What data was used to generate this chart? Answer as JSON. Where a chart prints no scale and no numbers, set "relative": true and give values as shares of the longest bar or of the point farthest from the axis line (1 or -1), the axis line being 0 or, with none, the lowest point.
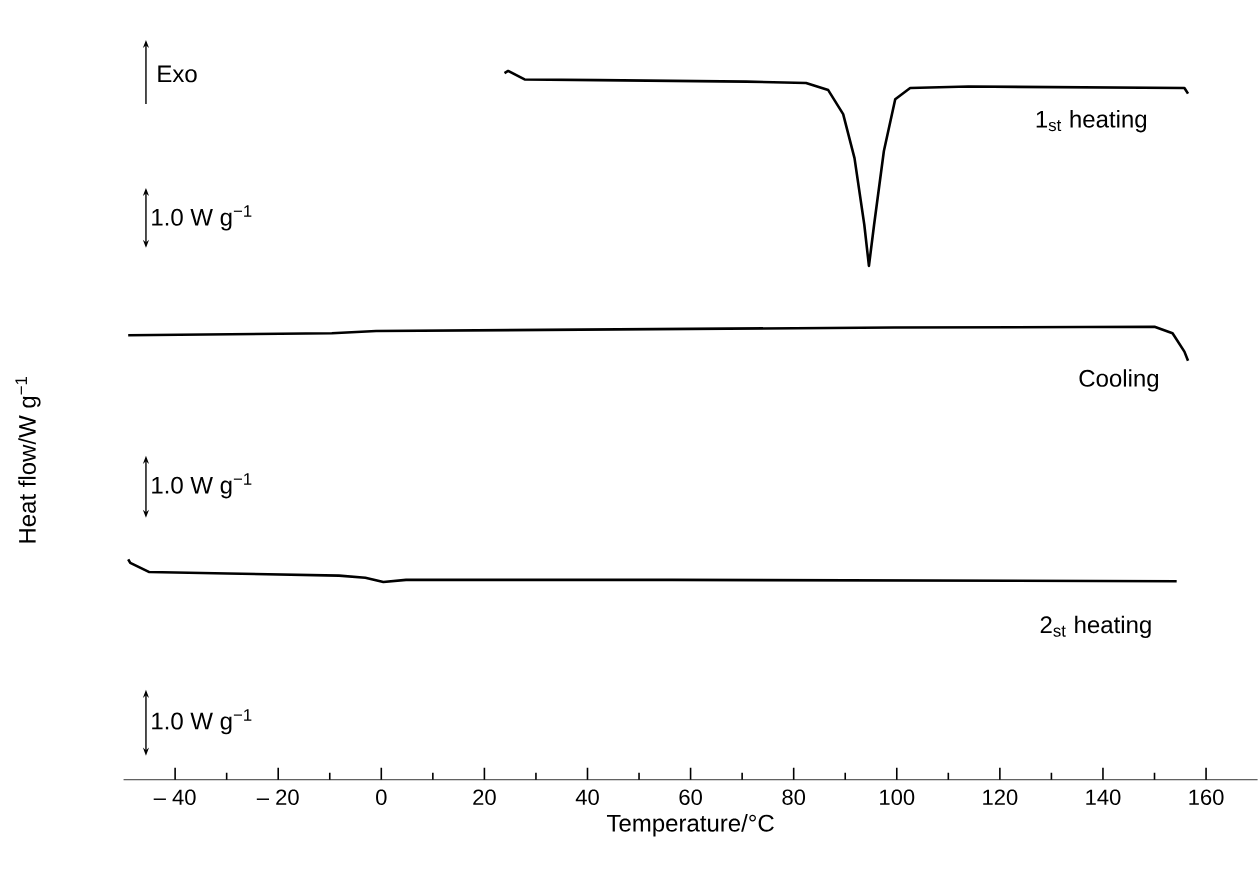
{
  "chart_data": {
    "type": "line",
    "relative": true,
    "xlabel": "Temperature/°C",
    "ylabel": "Heat flow/W g$^{−1}$",
    "xlim": [
      -50,
      170
    ],
    "xticks": [
      {
        "value": -40,
        "label": "– 40"
      },
      {
        "value": -20,
        "label": "– 20"
      },
      0,
      20,
      40,
      60,
      80,
      100,
      120,
      140,
      160
    ],
    "legend": false,
    "line_style": "solid",
    "annotations": [
      "Exo",
      "1.0 W g$^{−1}$",
      "1.0 W g$^{−1}$",
      "1.0 W g$^{−1}$"
    ],
    "series": [
      {
        "name": "1$_{st}$ heating",
        "color": "#000000",
        "x": [
          23.9,
          24.6,
          27.8,
          42,
          70.8,
          82.4,
          86.7,
          89.6,
          91.8,
          93.7,
          94.6,
          95.6,
          97.5,
          99.7,
          102.6,
          113.9,
          155.8,
          156.5
        ],
        "values": [
          0.997,
          1.0,
          0.988,
          0.987,
          0.985,
          0.983,
          0.973,
          0.939,
          0.877,
          0.783,
          0.725,
          0.783,
          0.887,
          0.96,
          0.976,
          0.978,
          0.976,
          0.968
        ]
      },
      {
        "name": "Cooling",
        "color": "#000000",
        "x": [
          -49.1,
          -9.6,
          -1,
          99.5,
          150,
          153.5,
          155.8,
          156.5
        ],
        "values": [
          0.627,
          0.63,
          0.633,
          0.638,
          0.639,
          0.63,
          0.604,
          0.591
        ]
      },
      {
        "name": "2$_{st}$ heating",
        "color": "#000000",
        "x": [
          -49.1,
          -48.7,
          -45,
          -29.8,
          -8.2,
          -3.1,
          0.4,
          4.8,
          56.4,
          154.3
        ],
        "values": [
          0.311,
          0.306,
          0.293,
          0.291,
          0.288,
          0.285,
          0.279,
          0.282,
          0.282,
          0.28
        ]
      }
    ]
  }
}
